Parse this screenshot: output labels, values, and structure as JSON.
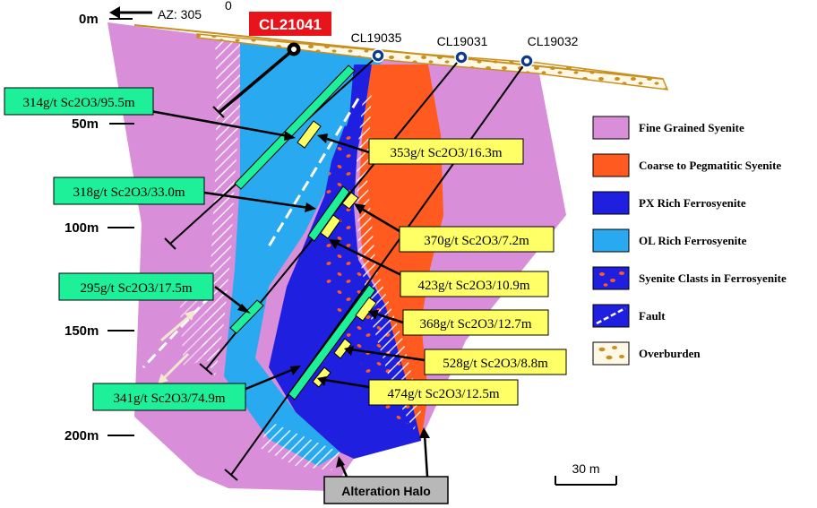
{
  "azimuth": {
    "label": "AZ: 305",
    "superscript": "0"
  },
  "depth_labels": [
    "0m",
    "50m",
    "100m",
    "150m",
    "200m"
  ],
  "drill_holes": {
    "highlight": {
      "name": "CL21041",
      "color": "#e8141b"
    },
    "others": [
      "CL19035",
      "CL19031",
      "CL19032"
    ]
  },
  "intercepts_green": [
    "314g/t Sc2O3/95.5m",
    "318g/t Sc2O3/33.0m",
    "295g/t Sc2O3/17.5m",
    "341g/t Sc2O3/74.9m"
  ],
  "intercepts_yellow": [
    "353g/t Sc2O3/16.3m",
    "370g/t Sc2O3/7.2m",
    "423g/t Sc2O3/10.9m",
    "368g/t Sc2O3/12.7m",
    "528g/t Sc2O3/8.8m",
    "474g/t Sc2O3/12.5m"
  ],
  "legend": [
    {
      "label": "Fine Grained Syenite",
      "color": "#d98ed9",
      "icon": "solid-swatch"
    },
    {
      "label": "Coarse to Pegmatitic Syenite",
      "color": "#ff5a1f",
      "icon": "solid-swatch"
    },
    {
      "label": "PX Rich Ferrosyenite",
      "color": "#1f1fe0",
      "icon": "solid-swatch"
    },
    {
      "label": "OL Rich Ferrosyenite",
      "color": "#29aaf0",
      "icon": "solid-swatch"
    },
    {
      "label": "Syenite Clasts in Ferrosyenite",
      "color": "#1f1fe0",
      "icon": "clast-swatch"
    },
    {
      "label": "Fault",
      "color": "#1f1fe0",
      "icon": "fault-swatch"
    },
    {
      "label": "Overburden",
      "color": "#c8901f",
      "icon": "overburden-swatch"
    }
  ],
  "alteration_label": "Alteration Halo",
  "scale_bar": "30 m",
  "colors": {
    "green_box": "#1ef09a",
    "yellow_box": "#ffff66",
    "overburden": "#c8901f"
  }
}
